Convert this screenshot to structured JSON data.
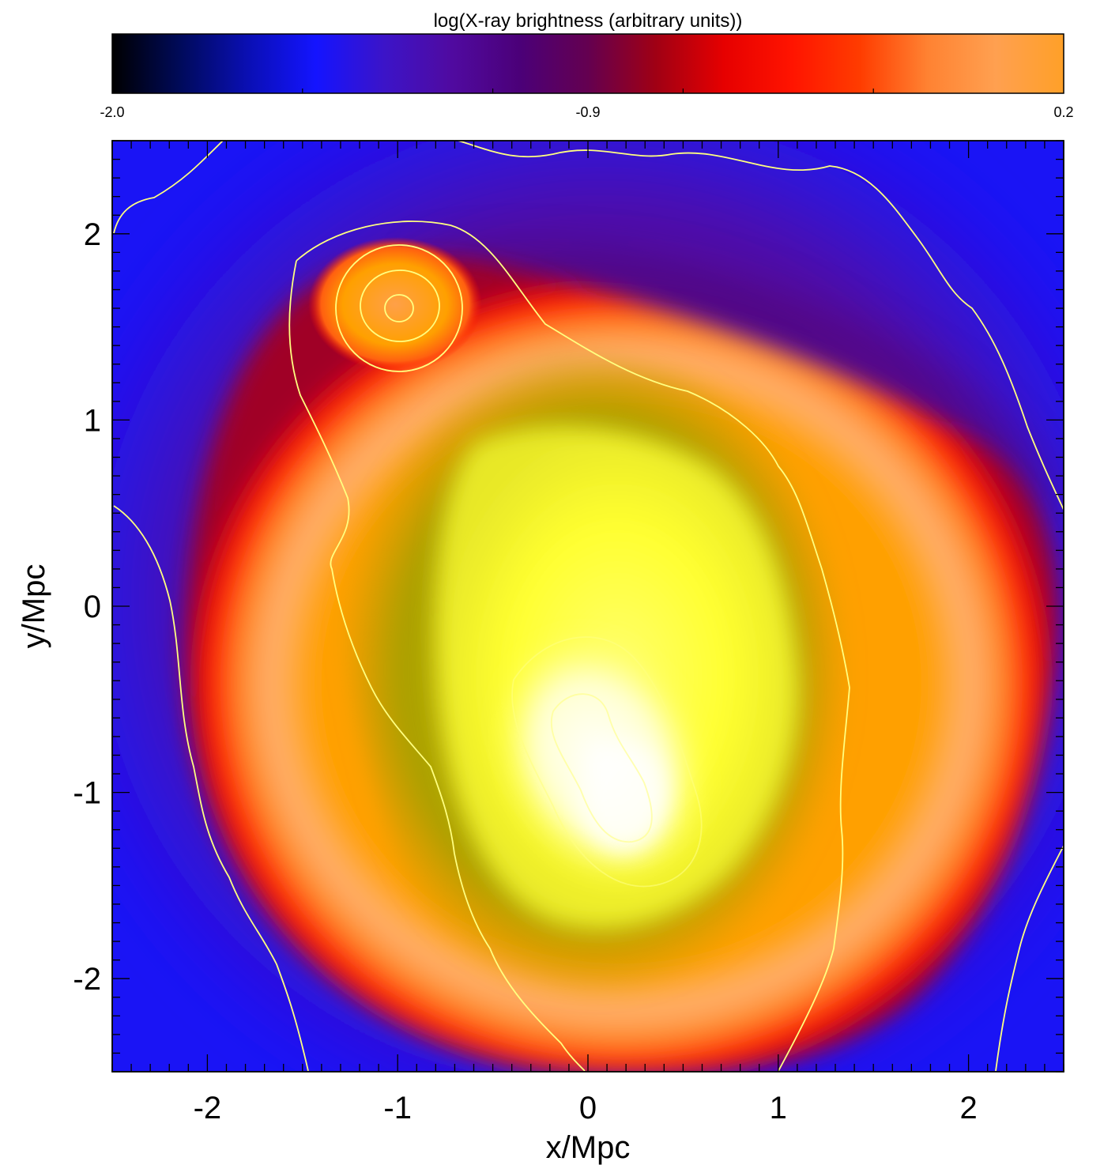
{
  "chart_data": {
    "type": "heatmap",
    "colorbar": {
      "title": "log(X-ray brightness (arbitrary units))",
      "min": -2.0,
      "max": 0.2,
      "tick_values": [
        -2.0,
        -0.9,
        0.2
      ],
      "tick_labels": [
        "-2.0",
        "-0.9",
        "0.2"
      ],
      "colors": [
        "#000000",
        "#000a5a",
        "#0a0fb4",
        "#1414ff",
        "#3c14c8",
        "#500aa0",
        "#4b0078",
        "#640050",
        "#a00014",
        "#e60000",
        "#ff1400",
        "#ff3c00",
        "#ff8232",
        "#ffa050",
        "#ffa028"
      ]
    },
    "xlabel": "x/Mpc",
    "ylabel": "y/Mpc",
    "xlim": [
      -2.5,
      2.5
    ],
    "ylim": [
      -2.5,
      2.5
    ],
    "x_ticks": [
      -2,
      -1,
      0,
      1,
      2
    ],
    "x_tick_labels": [
      "-2",
      "-1",
      "0",
      "1",
      "2"
    ],
    "y_ticks": [
      -2,
      -1,
      0,
      1,
      2
    ],
    "y_tick_labels": [
      "-2",
      "-1",
      "0",
      "1",
      "2"
    ],
    "map_colors": {
      "background": "#1a14f5",
      "outer_halo": "#4f0aa8",
      "ring_red": "#ff1400",
      "ring_orange": "#ffa000",
      "ring_light": "#ffb070",
      "olive": "#aaa000",
      "yellow": "#ffff30",
      "core": "#ffffe8",
      "contour": "#ffff80"
    },
    "features": [
      {
        "name": "subcluster",
        "x": -1.0,
        "y": 1.6
      },
      {
        "name": "main core",
        "x": 0.1,
        "y": -0.8
      }
    ]
  }
}
